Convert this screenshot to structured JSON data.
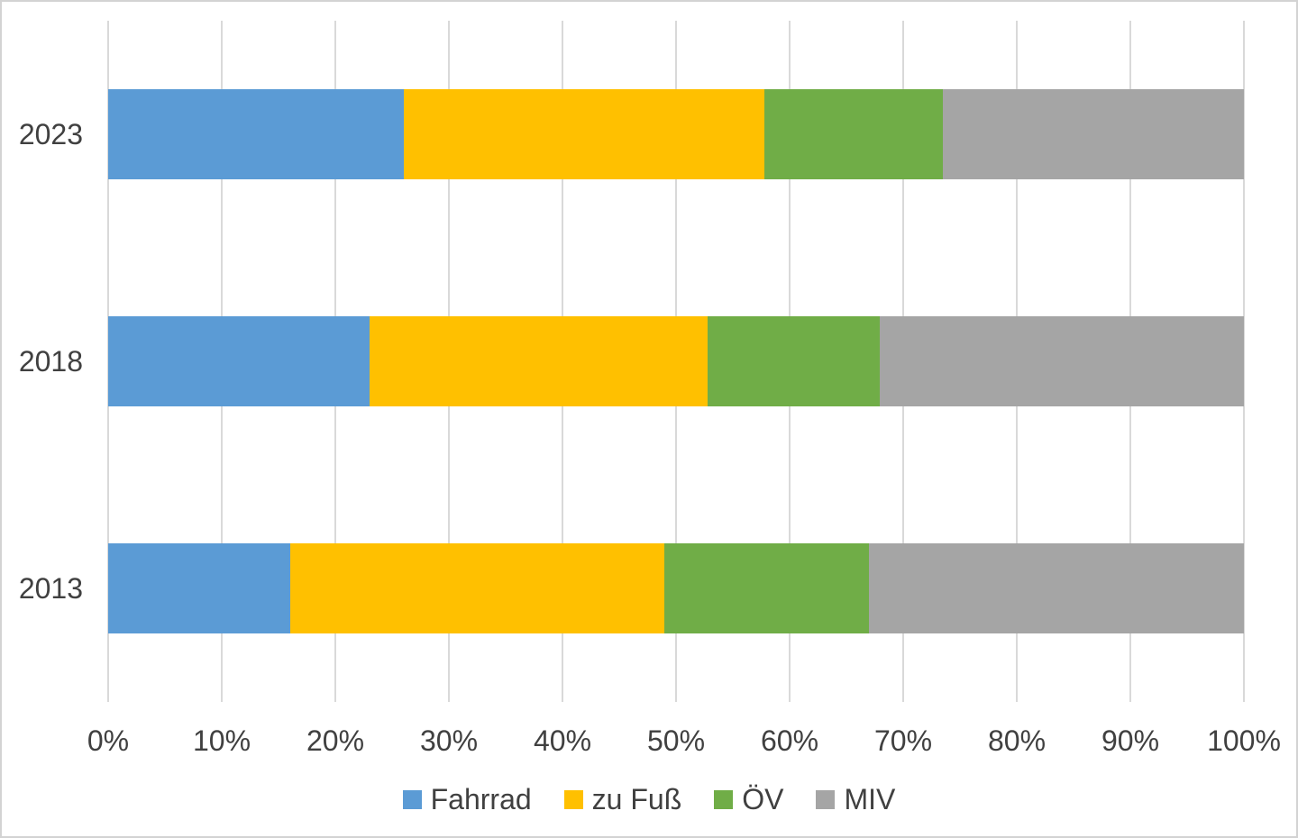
{
  "chart": {
    "background_color": "#ffffff",
    "border_color": "#d3d3d3",
    "gridline_color": "#d9d9d9",
    "text_color": "#404040"
  },
  "chart_data": {
    "type": "bar",
    "orientation": "horizontal",
    "stacked": true,
    "stacked_100_percent": true,
    "title": "",
    "xlabel": "",
    "ylabel": "",
    "categories": [
      "2023",
      "2018",
      "2013"
    ],
    "series": [
      {
        "key": "fahrrad",
        "name": "Fahrrad",
        "color": "#5B9BD5",
        "values": [
          26.0,
          23.0,
          16.0
        ]
      },
      {
        "key": "zu-fuss",
        "name": "zu Fuß",
        "color": "#FFC000",
        "values": [
          31.8,
          29.8,
          33.0
        ]
      },
      {
        "key": "oev",
        "name": "ÖV",
        "color": "#70AD47",
        "values": [
          15.7,
          15.1,
          18.0
        ]
      },
      {
        "key": "miv",
        "name": "MIV",
        "color": "#A5A5A5",
        "values": [
          26.5,
          32.1,
          33.0
        ]
      }
    ],
    "x_ticks": [
      "0%",
      "10%",
      "20%",
      "30%",
      "40%",
      "50%",
      "60%",
      "70%",
      "80%",
      "90%",
      "100%"
    ],
    "xlim": [
      0,
      100
    ],
    "grid": "vertical-only",
    "legend_position": "bottom-center"
  }
}
